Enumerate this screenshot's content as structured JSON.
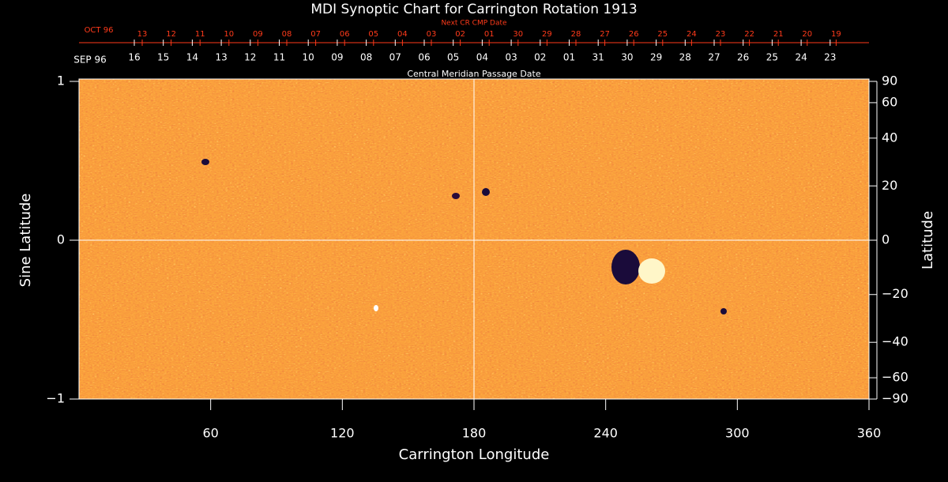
{
  "chart_data": {
    "type": "synoptic_map",
    "title": "MDI Synoptic Chart for Carrington Rotation 1913",
    "xlabel": "Carrington Longitude",
    "ylabel": "Sine Latitude",
    "y2label": "Latitude",
    "xlim": [
      0,
      360
    ],
    "xticks": [
      60,
      120,
      180,
      240,
      300,
      360
    ],
    "ylim": [
      -1,
      1
    ],
    "yticks": [
      {
        "value": -1,
        "label": "−1"
      },
      0,
      1
    ],
    "y2lim": [
      -90,
      90
    ],
    "y2scale": "sine",
    "y2ticks": [
      90,
      60,
      40,
      20,
      0,
      {
        "value": -20,
        "label": "−20"
      },
      {
        "value": -40,
        "label": "−40"
      },
      {
        "value": -60,
        "label": "−60"
      },
      {
        "value": -90,
        "label": "−90"
      }
    ],
    "next_cr_axis": {
      "label": "Next CR CMP Date",
      "start_label": "OCT 96",
      "color": "#ff3a1a",
      "dates": [
        "13",
        "12",
        "11",
        "10",
        "09",
        "08",
        "07",
        "06",
        "05",
        "04",
        "03",
        "02",
        "01",
        "30",
        "29",
        "28",
        "27",
        "26",
        "25",
        "24",
        "23",
        "22",
        "21",
        "20",
        "19"
      ]
    },
    "cmp_axis": {
      "label": "Central Meridian Passage Date",
      "start_label": "SEP 96",
      "color": "#ffffff",
      "dates": [
        "16",
        "15",
        "14",
        "13",
        "12",
        "11",
        "10",
        "09",
        "08",
        "07",
        "06",
        "05",
        "04",
        "03",
        "02",
        "01",
        "31",
        "30",
        "29",
        "28",
        "27",
        "26",
        "25",
        "24",
        "23"
      ]
    }
  }
}
